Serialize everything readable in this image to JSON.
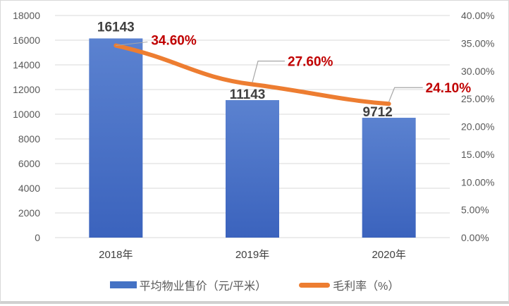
{
  "chart_data": {
    "type": "bar+line",
    "title": "",
    "categories": [
      "2018年",
      "2019年",
      "2020年"
    ],
    "series": [
      {
        "name": "平均物业售价（元/平米）",
        "type": "bar",
        "axis": "left",
        "color": "#4472c4",
        "values": [
          16143,
          11143,
          9712
        ],
        "labels": [
          "16143",
          "11143",
          "9712"
        ]
      },
      {
        "name": "毛利率（%）",
        "type": "line",
        "axis": "right",
        "color": "#ed7d31",
        "values": [
          34.6,
          27.6,
          24.1
        ],
        "labels": [
          "34.60%",
          "27.60%",
          "24.10%"
        ],
        "label_color": "#c00000"
      }
    ],
    "left_axis": {
      "ylim": [
        0,
        18000
      ],
      "ticks": [
        "0",
        "2000",
        "4000",
        "6000",
        "8000",
        "10000",
        "12000",
        "14000",
        "16000",
        "18000"
      ]
    },
    "right_axis": {
      "ylim": [
        0,
        40
      ],
      "ticks": [
        "0.00%",
        "5.00%",
        "10.00%",
        "15.00%",
        "20.00%",
        "25.00%",
        "30.00%",
        "35.00%",
        "40.00%"
      ]
    },
    "grid": true,
    "legend_position": "bottom",
    "xlabel": "",
    "ylabel": ""
  },
  "legend": {
    "bar_label": "平均物业售价（元/平米）",
    "line_label": "毛利率（%）"
  }
}
